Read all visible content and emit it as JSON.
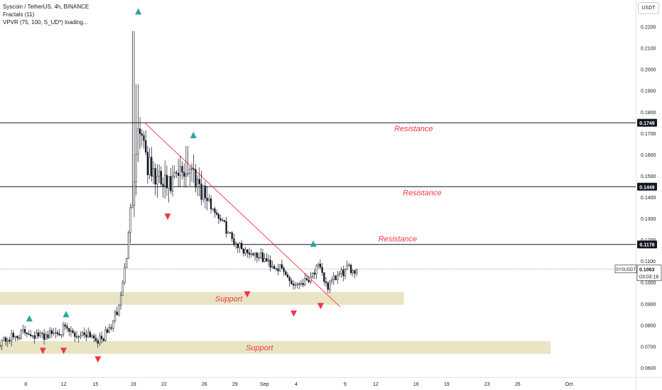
{
  "legend": {
    "symbol": "Syscoin / TetherUS, 4h, BINANCE",
    "fractals": "Fractals (11)",
    "vpvr": "VPVR (75, 100, S_UD*) loading..."
  },
  "currency_label": "USDT",
  "last_price": {
    "symbol": "SYSUSDT",
    "value": "0.1063",
    "countdown": "03:03:16"
  },
  "chart_data": {
    "type": "candlestick",
    "x_tick_labels": [
      "8",
      "12",
      "15",
      "19",
      "22",
      "26",
      "29",
      "Sep",
      "4",
      "9",
      "12",
      "16",
      "19",
      "23",
      "26",
      "Oct"
    ],
    "y_tick_labels": [
      "0.2200",
      "0.2100",
      "0.2000",
      "0.1900",
      "0.1800",
      "0.1700",
      "0.1600",
      "0.1500",
      "0.1400",
      "0.1300",
      "0.1200",
      "0.1100",
      "0.1000",
      "0.0900",
      "0.0800",
      "0.0700",
      "0.0600"
    ],
    "y_ticks": [
      0.22,
      0.21,
      0.2,
      0.19,
      0.18,
      0.17,
      0.16,
      0.15,
      0.14,
      0.13,
      0.12,
      0.11,
      0.1,
      0.09,
      0.08,
      0.07,
      0.06
    ],
    "ylim": [
      0.0555,
      0.2325
    ],
    "horizontal_levels": [
      {
        "value": 0.1749,
        "label": "0.1749",
        "text": "Resistance"
      },
      {
        "value": 0.1449,
        "label": "0.1449",
        "text": "Resistance"
      },
      {
        "value": 0.1178,
        "label": "0.1178",
        "text": "Resistance"
      }
    ],
    "current_price": 0.1063,
    "support_zones": [
      {
        "low": 0.0895,
        "high": 0.0955,
        "text": "Support",
        "x_start": 0.0,
        "x_end": 0.33
      },
      {
        "low": 0.0665,
        "high": 0.0725,
        "text": "Support",
        "x_start": 0.0,
        "x_end": 0.45
      }
    ],
    "trendline": {
      "start": {
        "x": 0.118,
        "y": 0.175
      },
      "end": {
        "x": 0.278,
        "y": 0.0885
      }
    },
    "anchors": [
      {
        "x": 0.0,
        "y": 0.0725
      },
      {
        "x": 0.012,
        "y": 0.0745
      },
      {
        "x": 0.022,
        "y": 0.077
      },
      {
        "x": 0.032,
        "y": 0.0745
      },
      {
        "x": 0.042,
        "y": 0.076
      },
      {
        "x": 0.052,
        "y": 0.078
      },
      {
        "x": 0.062,
        "y": 0.075
      },
      {
        "x": 0.072,
        "y": 0.0765
      },
      {
        "x": 0.082,
        "y": 0.0725
      },
      {
        "x": 0.09,
        "y": 0.0785
      },
      {
        "x": 0.097,
        "y": 0.088
      },
      {
        "x": 0.103,
        "y": 0.11
      },
      {
        "x": 0.108,
        "y": 0.14
      },
      {
        "x": 0.112,
        "y": 0.17
      },
      {
        "x": 0.116,
        "y": 0.172
      },
      {
        "x": 0.121,
        "y": 0.154
      },
      {
        "x": 0.128,
        "y": 0.148
      },
      {
        "x": 0.138,
        "y": 0.144
      },
      {
        "x": 0.148,
        "y": 0.151
      },
      {
        "x": 0.155,
        "y": 0.154
      },
      {
        "x": 0.162,
        "y": 0.148
      },
      {
        "x": 0.17,
        "y": 0.138
      },
      {
        "x": 0.18,
        "y": 0.13
      },
      {
        "x": 0.19,
        "y": 0.12
      },
      {
        "x": 0.2,
        "y": 0.115
      },
      {
        "x": 0.21,
        "y": 0.113
      },
      {
        "x": 0.22,
        "y": 0.109
      },
      {
        "x": 0.23,
        "y": 0.106
      },
      {
        "x": 0.24,
        "y": 0.099
      },
      {
        "x": 0.25,
        "y": 0.101
      },
      {
        "x": 0.26,
        "y": 0.107
      },
      {
        "x": 0.268,
        "y": 0.098
      },
      {
        "x": 0.276,
        "y": 0.103
      },
      {
        "x": 0.284,
        "y": 0.106
      },
      {
        "x": 0.292,
        "y": 0.1063
      }
    ],
    "x_tick_positions": [
      0.021,
      0.052,
      0.078,
      0.109,
      0.134,
      0.167,
      0.192,
      0.216,
      0.242,
      0.282,
      0.307,
      0.34,
      0.365,
      0.398,
      0.423,
      0.465
    ],
    "fractals_up": [
      {
        "x": 0.113,
        "y": 0.227
      },
      {
        "x": 0.158,
        "y": 0.169
      },
      {
        "x": 0.256,
        "y": 0.118
      },
      {
        "x": 0.024,
        "y": 0.083
      },
      {
        "x": 0.054,
        "y": 0.085
      }
    ],
    "fractals_down": [
      {
        "x": 0.137,
        "y": 0.131
      },
      {
        "x": 0.035,
        "y": 0.068
      },
      {
        "x": 0.052,
        "y": 0.068
      },
      {
        "x": 0.08,
        "y": 0.064
      },
      {
        "x": 0.202,
        "y": 0.0945
      },
      {
        "x": 0.24,
        "y": 0.0855
      },
      {
        "x": 0.262,
        "y": 0.089
      }
    ]
  }
}
